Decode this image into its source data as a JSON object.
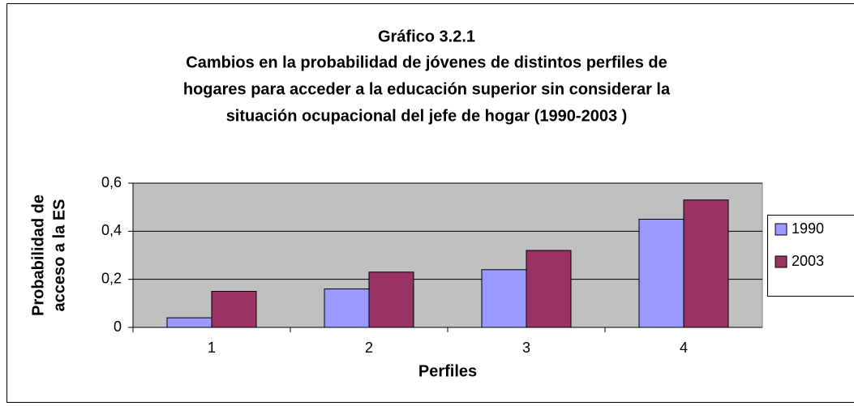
{
  "chart_data": {
    "type": "bar",
    "title": "Gráfico 3.2.1",
    "subtitle": [
      "Cambios en la probabilidad de jóvenes de distintos perfiles de",
      "hogares para acceder a la educación superior sin considerar la",
      "situación ocupacional del jefe de hogar (1990-2003 )"
    ],
    "ylabel": [
      "Probabilidad de",
      "acceso a la ES"
    ],
    "xlabel": "Perfiles",
    "categories": [
      "1",
      "2",
      "3",
      "4"
    ],
    "series": [
      {
        "name": "1990",
        "color": "#9999ff",
        "values": [
          0.04,
          0.16,
          0.24,
          0.45
        ]
      },
      {
        "name": "2003",
        "color": "#993366",
        "values": [
          0.15,
          0.23,
          0.32,
          0.53
        ]
      }
    ],
    "ylim": [
      0,
      0.6
    ],
    "yticks": [
      0,
      {
        "value": 0.2,
        "label": "0,2"
      },
      {
        "value": 0.4,
        "label": "0,4"
      },
      {
        "value": 0.6,
        "label": "0,6"
      }
    ],
    "grid": true,
    "legend": "right"
  }
}
